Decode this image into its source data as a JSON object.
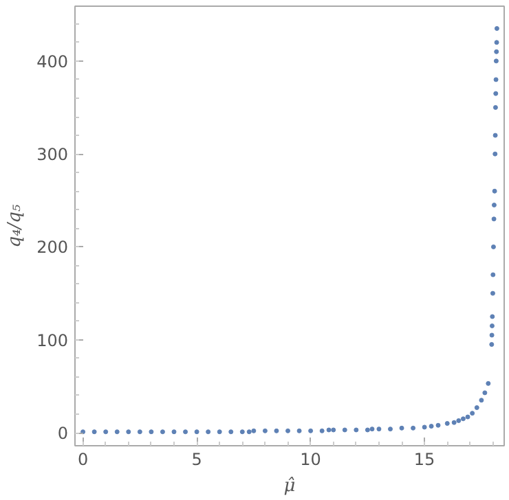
{
  "chart_data": {
    "type": "scatter",
    "xlabel": "μ̂",
    "ylabel": "q₄/q₅",
    "xlim": [
      -0.35,
      18.5
    ],
    "ylim": [
      -14,
      459
    ],
    "xticks": [
      0,
      5,
      10,
      15
    ],
    "yticks": [
      0,
      100,
      200,
      300,
      400
    ],
    "grid": false,
    "marker": "circle",
    "series": [
      {
        "color": "#5e81b5",
        "x": [
          0,
          0.5,
          1,
          1.5,
          2,
          2.5,
          3,
          3.5,
          4,
          4.5,
          5,
          5.5,
          6,
          6.5,
          7,
          7.3,
          7.5,
          8,
          8.5,
          9,
          9.5,
          10,
          10.5,
          10.8,
          11,
          11.5,
          12,
          12.5,
          12.7,
          13,
          13.5,
          14,
          14.5,
          15,
          15.3,
          15.6,
          16,
          16.3,
          16.5,
          16.7,
          16.9,
          17.1,
          17.3,
          17.5,
          17.65,
          17.8,
          17.95,
          17.96,
          17.97,
          17.98,
          18.0,
          18.01,
          18.03,
          18.05,
          18.06,
          18.08,
          18.1,
          18.11,
          18.12,
          18.13,
          18.14,
          18.15,
          18.16,
          18.17,
          18.18
        ],
        "values": [
          1,
          1,
          1,
          1,
          1,
          1,
          1,
          1,
          1,
          1,
          1,
          1,
          1,
          1,
          1,
          1,
          2,
          2,
          2,
          2,
          2,
          2,
          2,
          3,
          3,
          3,
          3,
          3,
          4,
          4,
          4,
          5,
          5,
          6,
          7,
          8,
          10,
          11,
          13,
          15,
          17,
          21,
          27,
          35,
          43,
          53,
          95,
          105,
          115,
          125,
          150,
          170,
          200,
          230,
          245,
          260,
          300,
          320,
          350,
          365,
          380,
          400,
          410,
          420,
          435
        ]
      }
    ]
  }
}
